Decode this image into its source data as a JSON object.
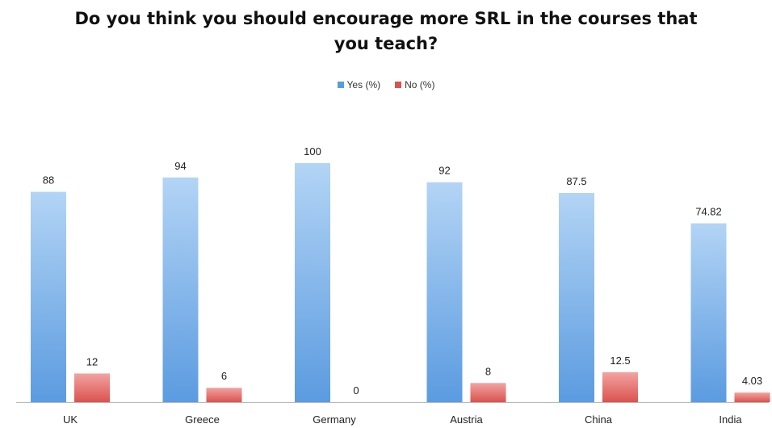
{
  "colors": {
    "yes_top": "#b3d4f5",
    "yes_bottom": "#5b9be0",
    "no_top": "#f2a3a1",
    "no_bottom": "#d9534f",
    "axis": "#b8b8b8"
  },
  "chart_data": {
    "type": "bar",
    "title": "Do you think you should encourage more SRL in the courses that\nyou teach?",
    "categories": [
      "UK",
      "Greece",
      "Germany",
      "Austria",
      "China",
      "India"
    ],
    "series": [
      {
        "name": "Yes (%)",
        "values": [
          88,
          94,
          100,
          92,
          87.5,
          74.82
        ],
        "value_labels": [
          "88",
          "94",
          "100",
          "92",
          "87.5",
          "74.82"
        ]
      },
      {
        "name": "No (%)",
        "values": [
          12,
          6,
          0,
          8,
          12.5,
          4.03
        ],
        "value_labels": [
          "12",
          "6",
          "0",
          "8",
          "12.5",
          "4.03"
        ]
      }
    ],
    "ylim": [
      0,
      100
    ],
    "grid": false,
    "legend_position": "top"
  }
}
